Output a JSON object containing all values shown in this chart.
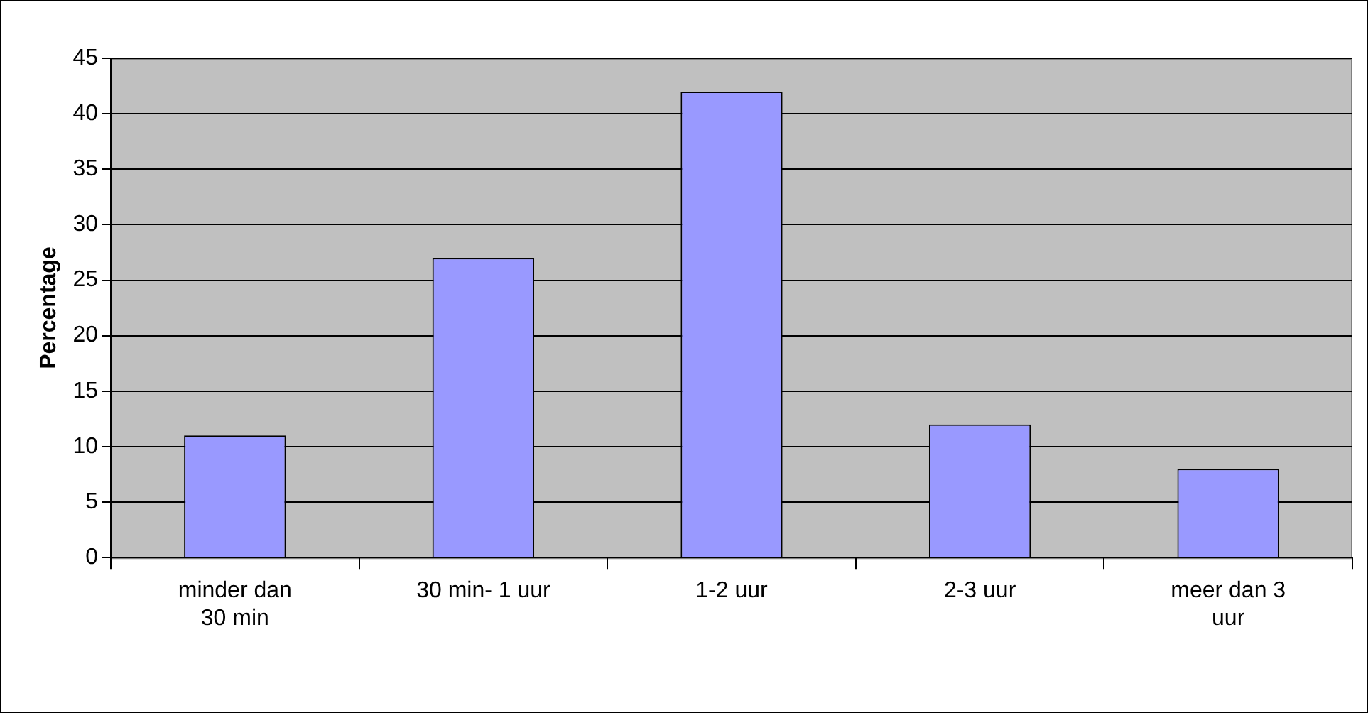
{
  "chart_data": {
    "type": "bar",
    "ylabel": "Percentage",
    "categories": [
      "minder dan 30 min",
      "30 min- 1 uur",
      "1-2 uur",
      "2-3 uur",
      "meer dan 3 uur"
    ],
    "values": [
      11,
      27,
      42,
      12,
      8
    ],
    "color": "#9999ff",
    "ylim": [
      0,
      45
    ],
    "yticks": [
      0,
      5,
      10,
      15,
      20,
      25,
      30,
      35,
      40,
      45
    ],
    "grid": "y"
  }
}
